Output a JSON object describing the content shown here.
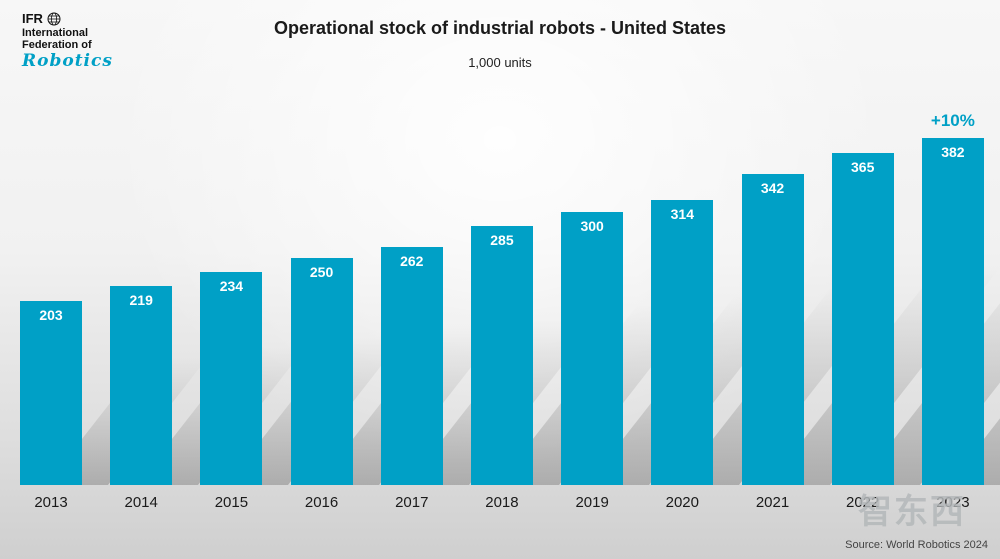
{
  "logo": {
    "ifr": "IFR",
    "line1": "International",
    "line2": "Federation of",
    "robotics": "Robotics"
  },
  "header": {
    "title": "Operational stock of industrial robots - United States",
    "subtitle": "1,000 units"
  },
  "annotation": "+10%",
  "source": "Source: World Robotics 2024",
  "watermark": "智东西",
  "colors": {
    "bar": "#00a0c6",
    "accent": "#00a0c6",
    "value_label": "#ffffff"
  },
  "chart_data": {
    "type": "bar",
    "categories": [
      "2013",
      "2014",
      "2015",
      "2016",
      "2017",
      "2018",
      "2019",
      "2020",
      "2021",
      "2022",
      "2023"
    ],
    "values": [
      203,
      219,
      234,
      250,
      262,
      285,
      300,
      314,
      342,
      365,
      382
    ],
    "title": "Operational stock of industrial robots - United States",
    "units_label": "1,000 units",
    "xlabel": "",
    "ylabel": "",
    "ylim": [
      0,
      420
    ],
    "grid": false,
    "legend": "none",
    "annotations": [
      {
        "category": "2023",
        "text": "+10%",
        "position": "above-bar"
      }
    ]
  }
}
